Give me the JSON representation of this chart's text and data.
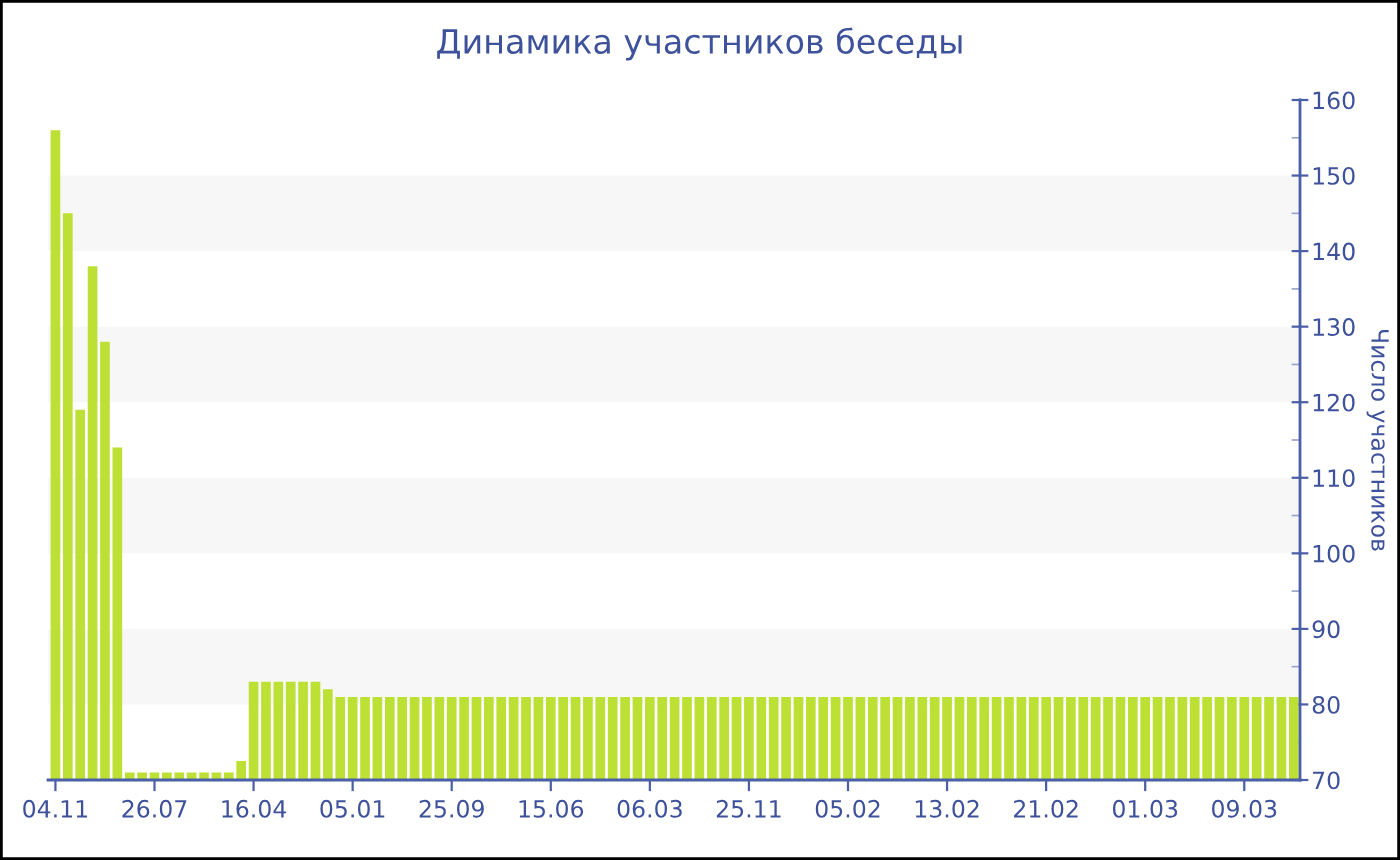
{
  "chart_data": {
    "type": "bar",
    "title": "Динамика участников беседы",
    "ylabel": "Число участников",
    "categories": [
      "04.11",
      null,
      null,
      null,
      null,
      null,
      null,
      null,
      "26.07",
      null,
      null,
      null,
      null,
      null,
      null,
      null,
      "16.04",
      null,
      null,
      null,
      null,
      null,
      null,
      null,
      "05.01",
      null,
      null,
      null,
      null,
      null,
      null,
      null,
      "25.09",
      null,
      null,
      null,
      null,
      null,
      null,
      null,
      "15.06",
      null,
      null,
      null,
      null,
      null,
      null,
      null,
      "06.03",
      null,
      null,
      null,
      null,
      null,
      null,
      null,
      "25.11",
      null,
      null,
      null,
      null,
      null,
      null,
      null,
      "05.02",
      null,
      null,
      null,
      null,
      null,
      null,
      null,
      "13.02",
      null,
      null,
      null,
      null,
      null,
      null,
      null,
      "21.02",
      null,
      null,
      null,
      null,
      null,
      null,
      null,
      "01.03",
      null,
      null,
      null,
      null,
      null,
      null,
      null,
      "09.03",
      null,
      null,
      null,
      null
    ],
    "values": [
      156,
      145,
      119,
      138,
      128,
      114,
      71,
      71,
      71,
      71,
      71,
      71,
      71,
      71,
      71,
      72.5,
      83,
      83,
      83,
      83,
      83,
      83,
      82,
      81,
      81,
      81,
      81,
      81,
      81,
      81,
      81,
      81,
      81,
      81,
      81,
      81,
      81,
      81,
      81,
      81,
      81,
      81,
      81,
      81,
      81,
      81,
      81,
      81,
      81,
      81,
      81,
      81,
      81,
      81,
      81,
      81,
      81,
      81,
      81,
      81,
      81,
      81,
      81,
      81,
      81,
      81,
      81,
      81,
      81,
      81,
      81,
      81,
      81,
      81,
      81,
      81,
      81,
      81,
      81,
      81,
      81,
      81,
      81,
      81,
      81,
      81,
      81,
      81,
      81,
      81,
      81,
      81,
      81,
      81,
      81,
      81,
      81,
      81,
      81,
      81,
      81
    ],
    "color": "#bce033",
    "ylim": [
      70,
      160
    ],
    "yticks": [
      70,
      80,
      90,
      100,
      110,
      120,
      130,
      140,
      150,
      160
    ],
    "bands": [
      {
        "axis": "y",
        "from": 80,
        "to": 90,
        "color": "#f7f7f7"
      },
      {
        "axis": "y",
        "from": 100,
        "to": 110,
        "color": "#f7f7f7"
      },
      {
        "axis": "y",
        "from": 120,
        "to": 130,
        "color": "#f7f7f7"
      },
      {
        "axis": "y",
        "from": 140,
        "to": 150,
        "color": "#f7f7f7"
      }
    ]
  }
}
